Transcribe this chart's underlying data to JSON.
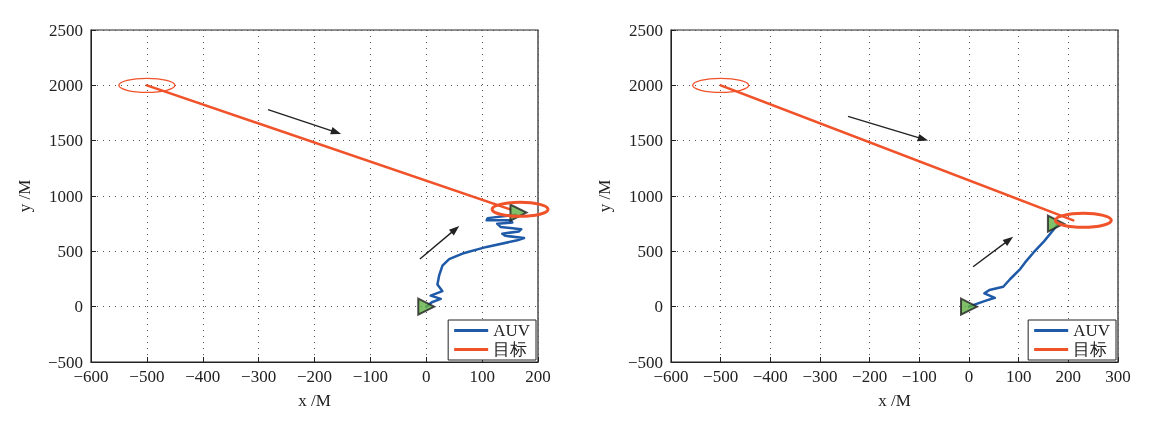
{
  "chart_data": [
    {
      "type": "line",
      "xlabel": "x /M",
      "ylabel": "y /M",
      "xlim": [
        -600,
        200
      ],
      "ylim": [
        -500,
        2500
      ],
      "xticks": [
        -600,
        -500,
        -400,
        -300,
        -200,
        -100,
        0,
        100,
        200
      ],
      "yticks": [
        -500,
        0,
        500,
        1000,
        1500,
        2000,
        2500
      ],
      "grid": true,
      "legend": "bottom right",
      "line_style": "solid",
      "marker": "none",
      "series": [
        {
          "name": "AUV",
          "color": "#1f5aa8",
          "x": [
            0,
            10,
            26,
            8,
            29,
            20,
            23,
            29,
            41,
            65,
            108,
            163,
            175,
            142,
            136,
            166,
            170,
            133,
            127,
            154,
            151,
            108,
            110,
            160
          ],
          "values": [
            0,
            40,
            70,
            100,
            140,
            200,
            280,
            370,
            430,
            480,
            540,
            600,
            620,
            640,
            660,
            680,
            700,
            720,
            750,
            760,
            780,
            780,
            800,
            830
          ]
        },
        {
          "name": "目标",
          "color": "#f0522a",
          "x": [
            -500,
            150
          ],
          "values": [
            2000,
            880
          ]
        },
        {
          "type": "scatter",
          "marker": "triangle",
          "color": "#5fb043",
          "x": [
            0,
            165
          ],
          "values": [
            0,
            850
          ]
        }
      ]
    },
    {
      "type": "line",
      "xlabel": "x /M",
      "ylabel": "y /M",
      "xlim": [
        -600,
        300
      ],
      "ylim": [
        -500,
        2500
      ],
      "xticks": [
        -600,
        -500,
        -400,
        -300,
        -200,
        -100,
        0,
        100,
        200,
        300
      ],
      "yticks": [
        -500,
        0,
        500,
        1000,
        1500,
        2000,
        2500
      ],
      "grid": true,
      "legend": "bottom right",
      "line_style": "solid",
      "marker": "none",
      "series": [
        {
          "name": "AUV",
          "color": "#1f5aa8",
          "x": [
            0,
            31,
            52,
            31,
            41,
            69,
            83,
            103,
            113,
            130,
            151,
            171,
            180
          ],
          "values": [
            0,
            50,
            80,
            120,
            150,
            180,
            250,
            340,
            400,
            490,
            590,
            700,
            750
          ]
        },
        {
          "name": "目标",
          "color": "#f0522a",
          "x": [
            -500,
            210
          ],
          "values": [
            2000,
            780
          ]
        },
        {
          "type": "scatter",
          "marker": "triangle",
          "color": "#5fb043",
          "x": [
            0,
            175
          ],
          "values": [
            0,
            750
          ]
        }
      ]
    }
  ]
}
